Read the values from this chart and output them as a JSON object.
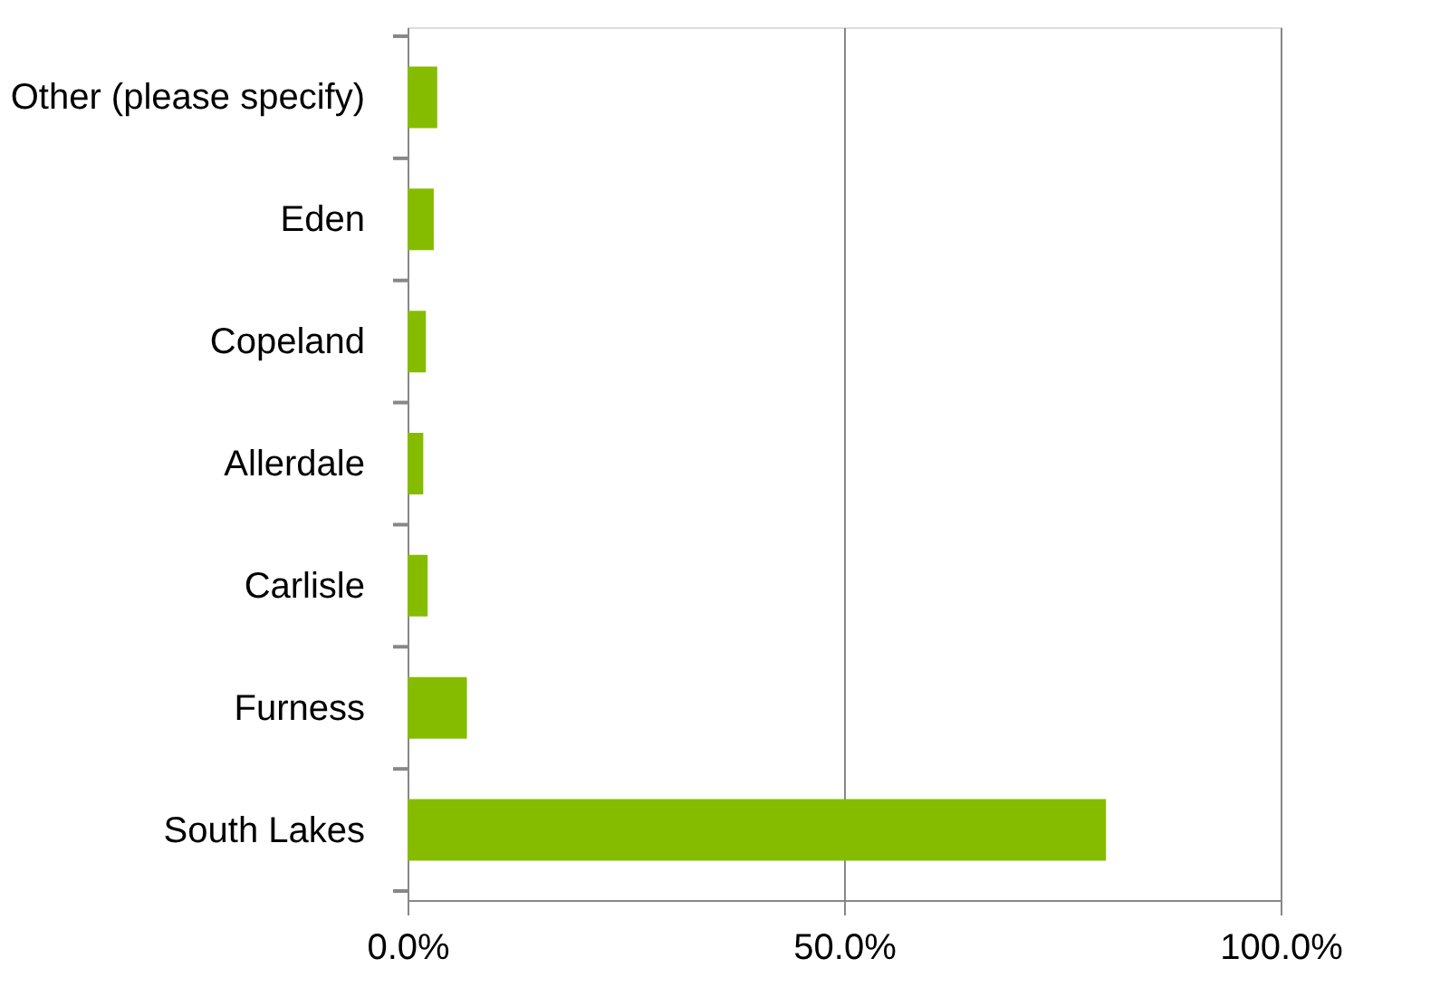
{
  "chart_data": {
    "type": "bar",
    "orientation": "horizontal",
    "categories": [
      "Other (please specify)",
      "Eden",
      "Copeland",
      "Allerdale",
      "Carlisle",
      "Furness",
      "South Lakes"
    ],
    "series": [
      {
        "color": "#85bc00",
        "values": [
          3.4,
          3.0,
          2.1,
          1.8,
          2.3,
          6.8,
          80.0
        ]
      }
    ],
    "xlim": [
      0,
      100
    ],
    "xticks": [
      {
        "value": 0,
        "label": "0.0%"
      },
      {
        "value": 50,
        "label": "50.0%"
      },
      {
        "value": 100,
        "label": "100.0%"
      }
    ],
    "grid": "x",
    "legend": false
  }
}
